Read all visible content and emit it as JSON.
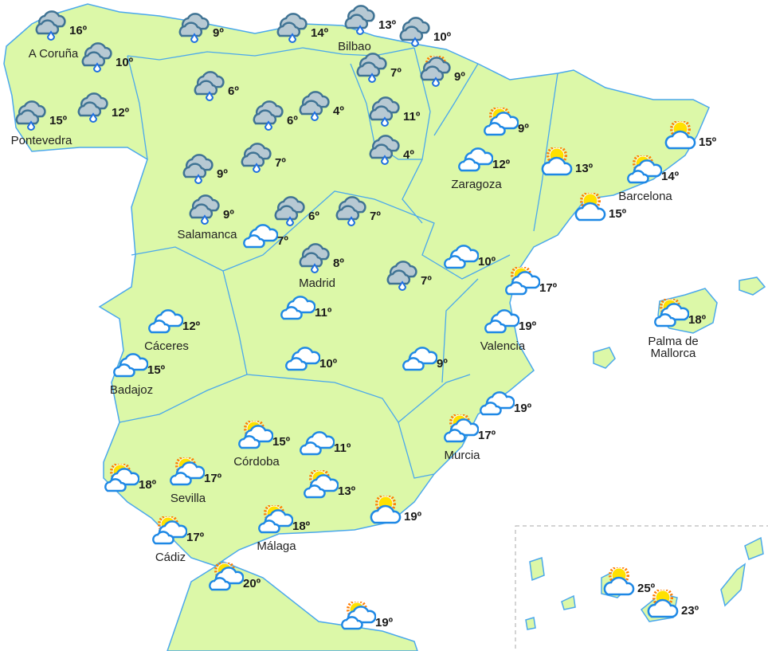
{
  "colors": {
    "land": "#dcf8a8",
    "border": "#4aa8ec",
    "cloud_stroke": "#1e88e5",
    "rain_cloud": "#b7c9d3",
    "sun": "#ffe100",
    "sun_rays": "#ff7b00"
  },
  "stations": [
    {
      "icon": "rain",
      "temp": "16º",
      "city": "A Coruña"
    },
    {
      "icon": "rain",
      "temp": "10º",
      "city": ""
    },
    {
      "icon": "rain",
      "temp": "15º",
      "city": "Pontevedra"
    },
    {
      "icon": "rain",
      "temp": "12º",
      "city": ""
    },
    {
      "icon": "rain",
      "temp": "9º",
      "city": ""
    },
    {
      "icon": "rain",
      "temp": "6º",
      "city": ""
    },
    {
      "icon": "rain",
      "temp": "14º",
      "city": ""
    },
    {
      "icon": "rain",
      "temp": "13º",
      "city": "Bilbao"
    },
    {
      "icon": "rain",
      "temp": "10º",
      "city": ""
    },
    {
      "icon": "sun-rain",
      "temp": "9º",
      "city": ""
    },
    {
      "icon": "rain",
      "temp": "7º",
      "city": ""
    },
    {
      "icon": "rain",
      "temp": "6º",
      "city": ""
    },
    {
      "icon": "rain",
      "temp": "4º",
      "city": ""
    },
    {
      "icon": "rain",
      "temp": "11º",
      "city": ""
    },
    {
      "icon": "rain",
      "temp": "4º",
      "city": ""
    },
    {
      "icon": "sun-clouds",
      "temp": "9º",
      "city": ""
    },
    {
      "icon": "clouds",
      "temp": "12º",
      "city": "Zaragoza"
    },
    {
      "icon": "sun-cloud",
      "temp": "13º",
      "city": ""
    },
    {
      "icon": "sun-cloud",
      "temp": "15º",
      "city": ""
    },
    {
      "icon": "sun-clouds",
      "temp": "14º",
      "city": "Barcelona"
    },
    {
      "icon": "sun-cloud",
      "temp": "15º",
      "city": ""
    },
    {
      "icon": "rain",
      "temp": "9º",
      "city": ""
    },
    {
      "icon": "rain",
      "temp": "7º",
      "city": ""
    },
    {
      "icon": "rain",
      "temp": "9º",
      "city": "Salamanca"
    },
    {
      "icon": "clouds",
      "temp": "7º",
      "city": ""
    },
    {
      "icon": "rain",
      "temp": "6º",
      "city": ""
    },
    {
      "icon": "rain",
      "temp": "7º",
      "city": ""
    },
    {
      "icon": "rain",
      "temp": "8º",
      "city": "Madrid"
    },
    {
      "icon": "rain",
      "temp": "7º",
      "city": ""
    },
    {
      "icon": "clouds",
      "temp": "10º",
      "city": ""
    },
    {
      "icon": "sun-clouds",
      "temp": "17º",
      "city": ""
    },
    {
      "icon": "clouds",
      "temp": "11º",
      "city": ""
    },
    {
      "icon": "clouds",
      "temp": "12º",
      "city": "Cáceres"
    },
    {
      "icon": "clouds",
      "temp": "19º",
      "city": "Valencia"
    },
    {
      "icon": "sun-clouds",
      "temp": "18º",
      "city": "Palma de Mallorca"
    },
    {
      "icon": "clouds",
      "temp": "10º",
      "city": ""
    },
    {
      "icon": "clouds",
      "temp": "9º",
      "city": ""
    },
    {
      "icon": "clouds",
      "temp": "15º",
      "city": "Badajoz"
    },
    {
      "icon": "clouds",
      "temp": "19º",
      "city": ""
    },
    {
      "icon": "sun-clouds",
      "temp": "17º",
      "city": "Murcia"
    },
    {
      "icon": "sun-clouds",
      "temp": "15º",
      "city": "Córdoba"
    },
    {
      "icon": "clouds",
      "temp": "11º",
      "city": ""
    },
    {
      "icon": "sun-clouds",
      "temp": "18º",
      "city": ""
    },
    {
      "icon": "sun-clouds",
      "temp": "17º",
      "city": "Sevilla"
    },
    {
      "icon": "sun-clouds",
      "temp": "13º",
      "city": ""
    },
    {
      "icon": "sun-cloud",
      "temp": "19º",
      "city": ""
    },
    {
      "icon": "sun-clouds",
      "temp": "18º",
      "city": "Málaga"
    },
    {
      "icon": "sun-clouds",
      "temp": "17º",
      "city": "Cádiz"
    },
    {
      "icon": "sun-clouds",
      "temp": "20º",
      "city": ""
    },
    {
      "icon": "sun-clouds",
      "temp": "19º",
      "city": ""
    },
    {
      "icon": "sun-cloud",
      "temp": "25º",
      "city": ""
    },
    {
      "icon": "sun-cloud",
      "temp": "23º",
      "city": ""
    }
  ]
}
